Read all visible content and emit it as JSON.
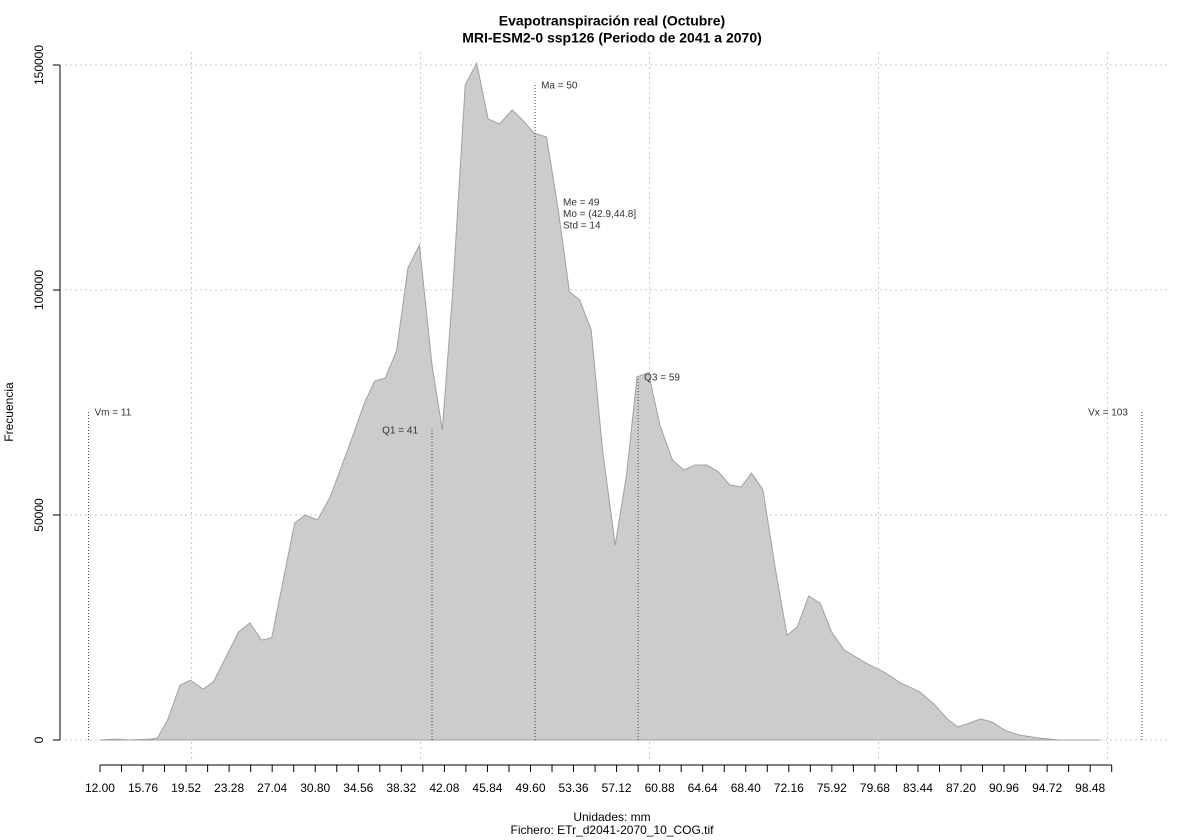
{
  "chart_data": {
    "type": "area",
    "title": "Evapotranspiración real (Octubre)",
    "subtitle": "MRI-ESM2-0 ssp126 (Periodo de 2041 a 2070)",
    "x_label": "Unidades: mm",
    "footer": "Fichero: ETr_d2041-2070_10_COG.tif",
    "y_label": "Frecuencia",
    "x": [
      12.0,
      13.3,
      14.6,
      16.4,
      17.0,
      17.9,
      19.0,
      19.9,
      21.0,
      21.9,
      24.1,
      25.1,
      26.1,
      27.0,
      29.0,
      29.9,
      31.0,
      32.1,
      33.8,
      35.1,
      36.0,
      36.9,
      37.9,
      38.9,
      39.9,
      41.0,
      41.9,
      42.8,
      43.9,
      44.9,
      45.9,
      46.9,
      48.0,
      48.9,
      49.9,
      51.0,
      52.0,
      53.0,
      53.9,
      54.9,
      55.9,
      57.0,
      58.0,
      58.9,
      59.9,
      60.9,
      62.0,
      63.0,
      64.0,
      65.0,
      66.0,
      67.0,
      68.0,
      68.9,
      69.9,
      71.0,
      72.0,
      72.9,
      73.9,
      74.9,
      75.9,
      77.0,
      78.9,
      80.6,
      81.9,
      83.6,
      84.9,
      86.0,
      86.9,
      88.0,
      88.9,
      89.9,
      91.0,
      92.3,
      94.1,
      95.8,
      99.3
    ],
    "values": [
      0,
      200,
      0,
      200,
      400,
      4400,
      12200,
      13300,
      11300,
      12900,
      24000,
      26000,
      22200,
      22700,
      48200,
      50000,
      48900,
      54000,
      65600,
      74900,
      79800,
      80400,
      86400,
      104900,
      110000,
      83300,
      68900,
      99300,
      145600,
      150400,
      138000,
      136900,
      140000,
      137800,
      134900,
      134000,
      118200,
      99600,
      97800,
      91100,
      64200,
      43300,
      59100,
      80700,
      81600,
      70000,
      62200,
      60000,
      61100,
      61100,
      59600,
      56700,
      56200,
      59300,
      55600,
      37800,
      23300,
      25100,
      32000,
      30400,
      24000,
      20000,
      17100,
      14900,
      12700,
      10700,
      7800,
      4700,
      2900,
      3800,
      4700,
      4000,
      2200,
      1100,
      400,
      0,
      0
    ],
    "color": "#cccccc",
    "xlim": [
      8.5,
      105.4
    ],
    "ylim": [
      -5000,
      155000
    ],
    "xticks": [
      {
        "value": 12.0,
        "label": "12.00"
      },
      {
        "value": 15.76,
        "label": "15.76"
      },
      {
        "value": 19.52,
        "label": "19.52"
      },
      {
        "value": 23.28,
        "label": "23.28"
      },
      {
        "value": 27.04,
        "label": "27.04"
      },
      {
        "value": 30.8,
        "label": "30.80"
      },
      {
        "value": 34.56,
        "label": "34.56"
      },
      {
        "value": 38.32,
        "label": "38.32"
      },
      {
        "value": 42.08,
        "label": "42.08"
      },
      {
        "value": 45.84,
        "label": "45.84"
      },
      {
        "value": 49.6,
        "label": "49.60"
      },
      {
        "value": 53.36,
        "label": "53.36"
      },
      {
        "value": 57.12,
        "label": "57.12"
      },
      {
        "value": 60.88,
        "label": "60.88"
      },
      {
        "value": 64.64,
        "label": "64.64"
      },
      {
        "value": 68.4,
        "label": "68.40"
      },
      {
        "value": 72.16,
        "label": "72.16"
      },
      {
        "value": 75.92,
        "label": "75.92"
      },
      {
        "value": 79.68,
        "label": "79.68"
      },
      {
        "value": 83.44,
        "label": "83.44"
      },
      {
        "value": 87.2,
        "label": "87.20"
      },
      {
        "value": 90.96,
        "label": "90.96"
      },
      {
        "value": 94.72,
        "label": "94.72"
      },
      {
        "value": 98.48,
        "label": "98.48"
      }
    ],
    "xminorticks": [
      13.88,
      17.64,
      21.4,
      25.16,
      28.92,
      32.68,
      36.44,
      40.2,
      43.96,
      47.72,
      51.48,
      55.24,
      59.0,
      62.76,
      66.52,
      70.28,
      74.04,
      77.8,
      81.56,
      85.32,
      89.08,
      92.84,
      96.6,
      100.36
    ],
    "yticks": [
      0,
      50000,
      100000,
      150000
    ],
    "xgrid": [
      20,
      40,
      60,
      80,
      100
    ],
    "grid": true,
    "annotations": [
      {
        "text": "Vm = 11",
        "x": 11,
        "y": 72900
      },
      {
        "text": "Q1 = 41",
        "x": 41,
        "y": 68900
      },
      {
        "text": "Ma = 50",
        "x": 50,
        "y": 145600
      },
      {
        "text": "Q3 = 59",
        "x": 59,
        "y": 80700
      },
      {
        "text": "Vx = 103",
        "x": 103,
        "y": 72900
      }
    ],
    "stats_text": [
      "Me = 49",
      "Mo = (42.9,44.8]",
      "Std = 14"
    ]
  }
}
